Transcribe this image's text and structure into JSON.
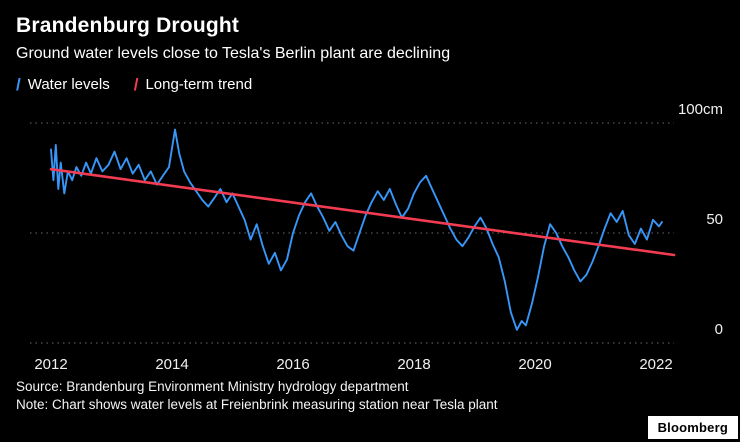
{
  "header": {
    "title": "Brandenburg Drought",
    "subtitle": "Ground water levels close to Tesla's Berlin plant are declining"
  },
  "legend": [
    {
      "label": "Water levels",
      "color": "#3896f8",
      "marker": "/"
    },
    {
      "label": "Long-term trend",
      "color": "#f23c52",
      "marker": "/"
    }
  ],
  "footer": {
    "source": "Source: Brandenburg Environment Ministry hydrology department",
    "note": "Note: Chart shows water levels at Freienbrink measuring station near Tesla plant",
    "brand": "Bloomberg"
  },
  "chart_data": {
    "type": "line",
    "title": "Brandenburg Drought",
    "subtitle": "Ground water levels close to Tesla's Berlin plant are declining",
    "xlabel": "",
    "ylabel": "cm",
    "xlim": [
      2012,
      2022.3
    ],
    "ylim": [
      0,
      100
    ],
    "grid": "horizontal-dotted",
    "grid_color": "#6b6b6b",
    "legend_position": "top-left",
    "x_ticks": [
      "2012",
      "2014",
      "2016",
      "2018",
      "2020",
      "2022"
    ],
    "x_tick_values": [
      2012,
      2014,
      2016,
      2018,
      2020,
      2022
    ],
    "y_ticks": [
      {
        "value": 100,
        "label": "100cm"
      },
      {
        "value": 50,
        "label": "50"
      },
      {
        "value": 0,
        "label": "0"
      }
    ],
    "series": [
      {
        "name": "Water levels",
        "color": "#3896f8",
        "width": 1.9,
        "x": [
          2012.0,
          2012.04,
          2012.08,
          2012.12,
          2012.16,
          2012.22,
          2012.28,
          2012.35,
          2012.42,
          2012.5,
          2012.58,
          2012.66,
          2012.75,
          2012.85,
          2012.95,
          2013.05,
          2013.15,
          2013.25,
          2013.35,
          2013.45,
          2013.55,
          2013.65,
          2013.75,
          2013.85,
          2013.95,
          2014.05,
          2014.12,
          2014.2,
          2014.3,
          2014.4,
          2014.5,
          2014.6,
          2014.7,
          2014.8,
          2014.9,
          2015.0,
          2015.1,
          2015.2,
          2015.3,
          2015.4,
          2015.5,
          2015.6,
          2015.7,
          2015.8,
          2015.9,
          2016.0,
          2016.1,
          2016.2,
          2016.3,
          2016.4,
          2016.5,
          2016.6,
          2016.7,
          2016.8,
          2016.9,
          2017.0,
          2017.1,
          2017.2,
          2017.3,
          2017.4,
          2017.5,
          2017.6,
          2017.7,
          2017.8,
          2017.9,
          2018.0,
          2018.1,
          2018.2,
          2018.3,
          2018.4,
          2018.5,
          2018.6,
          2018.7,
          2018.8,
          2018.9,
          2019.0,
          2019.1,
          2019.2,
          2019.3,
          2019.4,
          2019.5,
          2019.6,
          2019.7,
          2019.78,
          2019.85,
          2019.95,
          2020.05,
          2020.15,
          2020.25,
          2020.35,
          2020.45,
          2020.55,
          2020.65,
          2020.75,
          2020.85,
          2020.95,
          2021.05,
          2021.15,
          2021.25,
          2021.35,
          2021.45,
          2021.55,
          2021.65,
          2021.75,
          2021.85,
          2021.95,
          2022.05,
          2022.1
        ],
        "y": [
          88,
          74,
          90,
          70,
          82,
          68,
          78,
          74,
          80,
          76,
          82,
          77,
          84,
          78,
          81,
          87,
          79,
          84,
          77,
          81,
          74,
          78,
          72,
          76,
          80,
          97,
          86,
          78,
          73,
          69,
          65,
          62,
          66,
          70,
          64,
          68,
          62,
          56,
          47,
          54,
          44,
          36,
          41,
          33,
          38,
          50,
          58,
          64,
          68,
          62,
          57,
          51,
          55,
          49,
          44,
          42,
          50,
          58,
          64,
          69,
          65,
          70,
          63,
          57,
          61,
          68,
          73,
          76,
          70,
          64,
          58,
          52,
          47,
          44,
          48,
          53,
          57,
          52,
          45,
          39,
          28,
          14,
          6,
          10,
          8,
          18,
          30,
          44,
          54,
          50,
          44,
          39,
          33,
          28,
          31,
          37,
          44,
          52,
          59,
          55,
          60,
          49,
          45,
          52,
          47,
          56,
          53,
          55
        ]
      },
      {
        "name": "Long-term trend",
        "color": "#f23c52",
        "width": 2.6,
        "x": [
          2012.0,
          2022.3
        ],
        "y": [
          79,
          40
        ]
      }
    ]
  }
}
